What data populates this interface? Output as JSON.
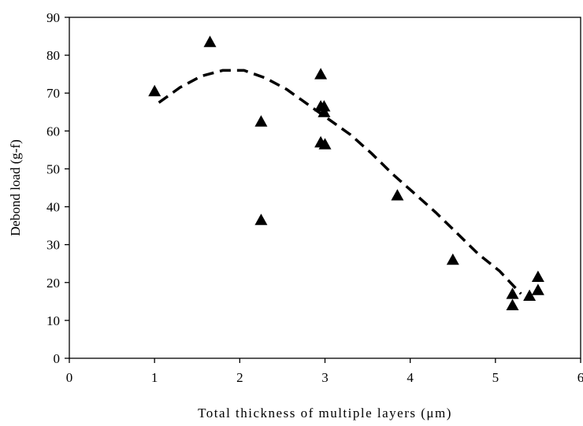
{
  "chart_data": {
    "type": "scatter",
    "title": "",
    "xlabel": "Total thickness of multiple layers (μm)",
    "ylabel": "Debond load (g-f)",
    "xlim": [
      0,
      6
    ],
    "ylim": [
      0,
      90
    ],
    "xticks": [
      0,
      1,
      2,
      3,
      4,
      5,
      6
    ],
    "yticks": [
      0,
      10,
      20,
      30,
      40,
      50,
      60,
      70,
      80,
      90
    ],
    "grid": false,
    "legend": "none",
    "marker": "triangle",
    "color": "#000000",
    "points": [
      {
        "x": 1.0,
        "y": 70.5
      },
      {
        "x": 1.65,
        "y": 83.5
      },
      {
        "x": 2.25,
        "y": 62.5
      },
      {
        "x": 2.25,
        "y": 36.5
      },
      {
        "x": 2.95,
        "y": 75.0
      },
      {
        "x": 2.95,
        "y": 66.5
      },
      {
        "x": 2.95,
        "y": 57.0
      },
      {
        "x": 2.99,
        "y": 66.5
      },
      {
        "x": 2.99,
        "y": 65.0
      },
      {
        "x": 3.0,
        "y": 56.5
      },
      {
        "x": 3.85,
        "y": 43.0
      },
      {
        "x": 4.5,
        "y": 26.0
      },
      {
        "x": 5.2,
        "y": 17.0
      },
      {
        "x": 5.2,
        "y": 14.0
      },
      {
        "x": 5.4,
        "y": 16.5
      },
      {
        "x": 5.5,
        "y": 21.5
      },
      {
        "x": 5.5,
        "y": 18.0
      }
    ],
    "trendline": {
      "style": "dashed",
      "points": [
        {
          "x": 1.05,
          "y": 67.5
        },
        {
          "x": 1.3,
          "y": 71.5
        },
        {
          "x": 1.55,
          "y": 74.5
        },
        {
          "x": 1.8,
          "y": 76.0
        },
        {
          "x": 2.05,
          "y": 76.0
        },
        {
          "x": 2.3,
          "y": 74.0
        },
        {
          "x": 2.55,
          "y": 71.0
        },
        {
          "x": 2.8,
          "y": 67.0
        },
        {
          "x": 3.05,
          "y": 63.0
        },
        {
          "x": 3.3,
          "y": 59.0
        },
        {
          "x": 3.55,
          "y": 54.0
        },
        {
          "x": 3.8,
          "y": 48.5
        },
        {
          "x": 4.05,
          "y": 43.5
        },
        {
          "x": 4.3,
          "y": 38.5
        },
        {
          "x": 4.55,
          "y": 33.0
        },
        {
          "x": 4.8,
          "y": 27.5
        },
        {
          "x": 5.05,
          "y": 23.0
        },
        {
          "x": 5.3,
          "y": 17.0
        }
      ]
    }
  }
}
